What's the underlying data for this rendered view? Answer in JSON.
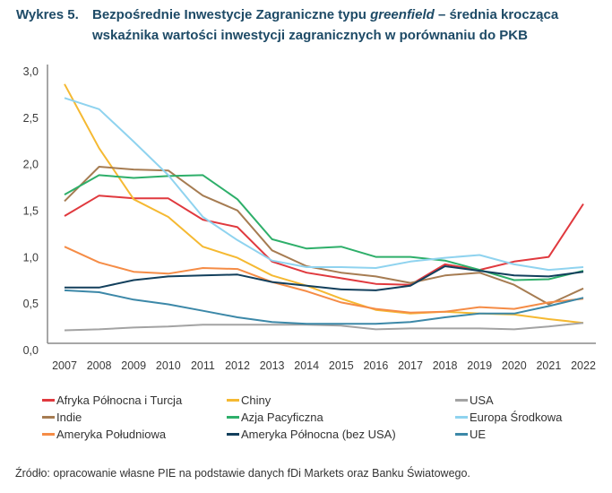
{
  "title": {
    "label": "Wykres 5.",
    "line1_pre": "Bezpośrednie Inwestycje Zagraniczne typu ",
    "line1_italic": "greenfield",
    "line1_post": " – średnia krocząca",
    "line2": "wskaźnika wartości inwestycji zagranicznych w porównaniu do PKB"
  },
  "source": "Źródło: opracowanie własne PIE na podstawie danych fDi Markets oraz Banku Światowego.",
  "chart_data": {
    "type": "line",
    "title": "Bezpośrednie Inwestycje Zagraniczne typu greenfield – średnia krocząca wskaźnika wartości inwestycji zagranicznych w porównaniu do PKB",
    "xlabel": "",
    "ylabel": "",
    "x": [
      "2007",
      "2008",
      "2009",
      "2010",
      "2011",
      "2012",
      "2013",
      "2014",
      "2015",
      "2016",
      "2017",
      "2018",
      "2019",
      "2020",
      "2021",
      "2022"
    ],
    "ylim": [
      0,
      3
    ],
    "yticks": [
      "0,0",
      "0,5",
      "1,0",
      "1,5",
      "2,0",
      "2,5",
      "3,0"
    ],
    "ytick_values": [
      0,
      0.5,
      1,
      1.5,
      2,
      2.5,
      3
    ],
    "grid": false,
    "legend_position": "bottom",
    "series": [
      {
        "name": "Afryka Północna i Turcja",
        "color": "#e0393e",
        "values": [
          1.37,
          1.59,
          1.56,
          1.56,
          1.33,
          1.25,
          0.88,
          0.76,
          0.7,
          0.64,
          0.63,
          0.85,
          0.79,
          0.88,
          0.93,
          1.5
        ]
      },
      {
        "name": "Chiny",
        "color": "#f5b932",
        "values": [
          2.79,
          2.1,
          1.55,
          1.36,
          1.04,
          0.92,
          0.73,
          0.62,
          0.48,
          0.36,
          0.32,
          0.34,
          0.32,
          0.31,
          0.26,
          0.22
        ]
      },
      {
        "name": "USA",
        "color": "#a3a3a3",
        "values": [
          0.14,
          0.15,
          0.17,
          0.18,
          0.2,
          0.2,
          0.2,
          0.2,
          0.19,
          0.15,
          0.16,
          0.16,
          0.16,
          0.15,
          0.18,
          0.22
        ]
      },
      {
        "name": "Indie",
        "color": "#a67c52",
        "values": [
          1.53,
          1.9,
          1.87,
          1.86,
          1.59,
          1.43,
          1.0,
          0.83,
          0.76,
          0.72,
          0.65,
          0.73,
          0.76,
          0.63,
          0.42,
          0.59
        ]
      },
      {
        "name": "Azja Pacyficzna",
        "color": "#2eaf6a",
        "values": [
          1.6,
          1.81,
          1.78,
          1.8,
          1.81,
          1.55,
          1.12,
          1.02,
          1.04,
          0.93,
          0.93,
          0.89,
          0.79,
          0.68,
          0.69,
          0.78
        ]
      },
      {
        "name": "Europa Środkowa",
        "color": "#8fd3ef",
        "values": [
          2.64,
          2.52,
          2.17,
          1.81,
          1.36,
          1.11,
          0.89,
          0.82,
          0.82,
          0.81,
          0.88,
          0.92,
          0.95,
          0.85,
          0.79,
          0.82
        ]
      },
      {
        "name": "Ameryka Południowa",
        "color": "#f58c46",
        "values": [
          1.04,
          0.87,
          0.77,
          0.75,
          0.81,
          0.8,
          0.66,
          0.56,
          0.44,
          0.37,
          0.33,
          0.34,
          0.39,
          0.37,
          0.44,
          0.48
        ]
      },
      {
        "name": "Ameryka Północna (bez USA)",
        "color": "#123f5c",
        "values": [
          0.6,
          0.6,
          0.68,
          0.72,
          0.73,
          0.74,
          0.66,
          0.62,
          0.58,
          0.57,
          0.62,
          0.83,
          0.78,
          0.73,
          0.72,
          0.77
        ]
      },
      {
        "name": "UE",
        "color": "#3c88a8",
        "values": [
          0.57,
          0.55,
          0.47,
          0.42,
          0.35,
          0.28,
          0.23,
          0.21,
          0.21,
          0.21,
          0.23,
          0.28,
          0.32,
          0.32,
          0.4,
          0.49
        ]
      }
    ]
  }
}
